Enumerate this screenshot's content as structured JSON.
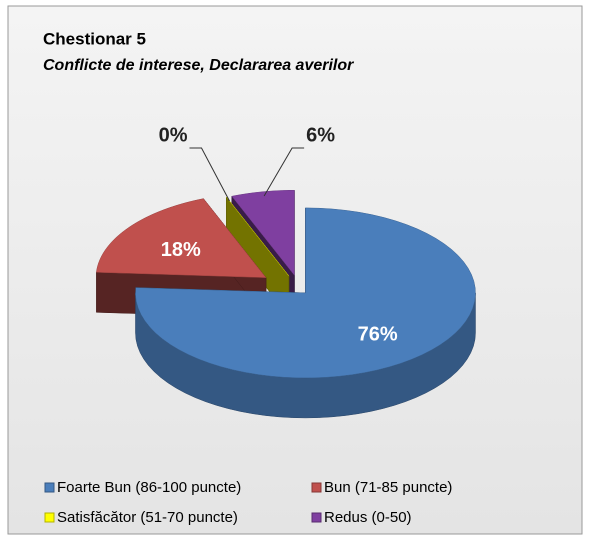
{
  "chart_data": {
    "type": "pie3d",
    "title": "Chestionar 5",
    "subtitle": "Conflicte de interese, Declararea averilor",
    "categories": [
      "Foarte Bun (86-100  puncte)",
      "Bun (71-85  puncte)",
      "Satisfăcător (51-70 puncte)",
      "Redus (0-50)"
    ],
    "values": [
      76,
      18,
      0,
      6
    ],
    "value_labels": [
      "76%",
      "18%",
      "0%",
      "6%"
    ],
    "colors": [
      "#4a7ebb",
      "#c0504d",
      "#ffff00",
      "#7f3fa0"
    ],
    "legend": "bottom"
  }
}
